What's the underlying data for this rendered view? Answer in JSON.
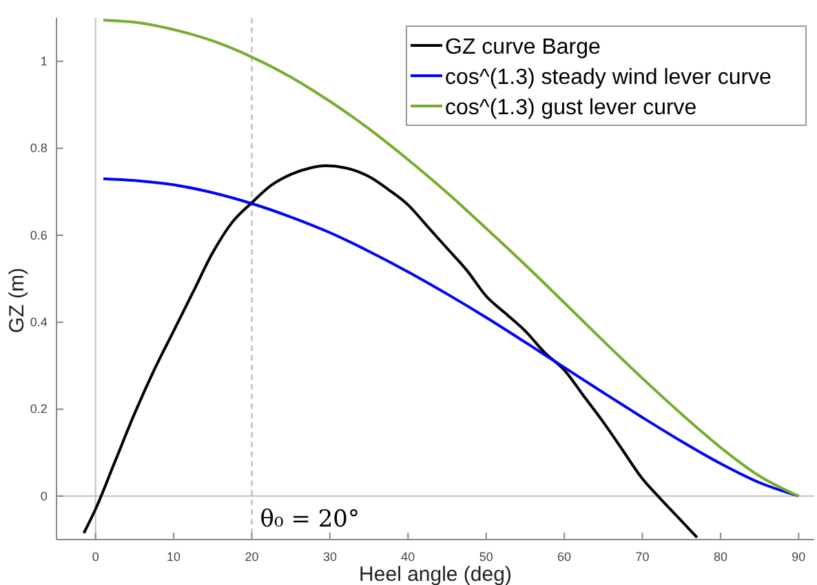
{
  "chart_data": {
    "type": "line",
    "xlabel": "Heel angle (deg)",
    "ylabel": "GZ (m)",
    "xlim": [
      -5,
      92
    ],
    "ylim": [
      -0.1,
      1.1
    ],
    "xticks": [
      0,
      10,
      20,
      30,
      40,
      50,
      60,
      70,
      80,
      90
    ],
    "yticks": [
      0,
      0.2,
      0.4,
      0.6,
      0.8,
      1
    ],
    "grid": false,
    "legend": "top right",
    "line_style": "solid",
    "marker": "none",
    "ref_lines": [
      {
        "axis": "x",
        "value": 0,
        "color": "#c0c0c0",
        "line_style": "solid"
      },
      {
        "axis": "y",
        "value": 0,
        "color": "#c0c0c0",
        "line_style": "solid"
      },
      {
        "axis": "x",
        "value": 20,
        "label": "θ₀ = 20°",
        "color": "#b0b0b0",
        "line_style": "dashed"
      }
    ],
    "series": [
      {
        "name": "GZ curve Barge",
        "color": "#000000",
        "x": [
          -1.5,
          0,
          2.5,
          5,
          7.5,
          10,
          12.5,
          15,
          17.5,
          20,
          22.5,
          25,
          27.5,
          29.5,
          32,
          35,
          37.5,
          40,
          42.5,
          45,
          47.5,
          50,
          52.5,
          55,
          57.5,
          60,
          62.5,
          65,
          67.5,
          70,
          72,
          75,
          77
        ],
        "values": [
          -0.085,
          -0.03,
          0.08,
          0.19,
          0.29,
          0.38,
          0.47,
          0.56,
          0.63,
          0.675,
          0.715,
          0.74,
          0.755,
          0.76,
          0.755,
          0.735,
          0.705,
          0.67,
          0.62,
          0.57,
          0.52,
          0.46,
          0.42,
          0.38,
          0.33,
          0.29,
          0.23,
          0.17,
          0.105,
          0.04,
          0,
          -0.057,
          -0.095
        ]
      },
      {
        "name": "cos^(1.3) steady wind lever curve",
        "color": "#0000ff",
        "x": [
          1,
          5,
          10,
          15,
          20,
          25,
          30,
          35,
          40,
          45,
          50,
          55,
          60,
          65,
          70,
          75,
          80,
          85,
          90
        ],
        "values": [
          0.73,
          0.726,
          0.716,
          0.698,
          0.673,
          0.642,
          0.606,
          0.563,
          0.516,
          0.465,
          0.411,
          0.354,
          0.296,
          0.238,
          0.181,
          0.126,
          0.075,
          0.031,
          0
        ]
      },
      {
        "name": "cos^(1.3) gust lever curve",
        "color": "#77ac30",
        "x": [
          1,
          5,
          10,
          15,
          20,
          25,
          30,
          35,
          40,
          45,
          50,
          55,
          60,
          65,
          70,
          75,
          80,
          85,
          90
        ],
        "values": [
          1.095,
          1.09,
          1.073,
          1.047,
          1.01,
          0.964,
          0.908,
          0.845,
          0.774,
          0.698,
          0.616,
          0.532,
          0.445,
          0.357,
          0.271,
          0.189,
          0.112,
          0.046,
          0
        ]
      }
    ]
  }
}
